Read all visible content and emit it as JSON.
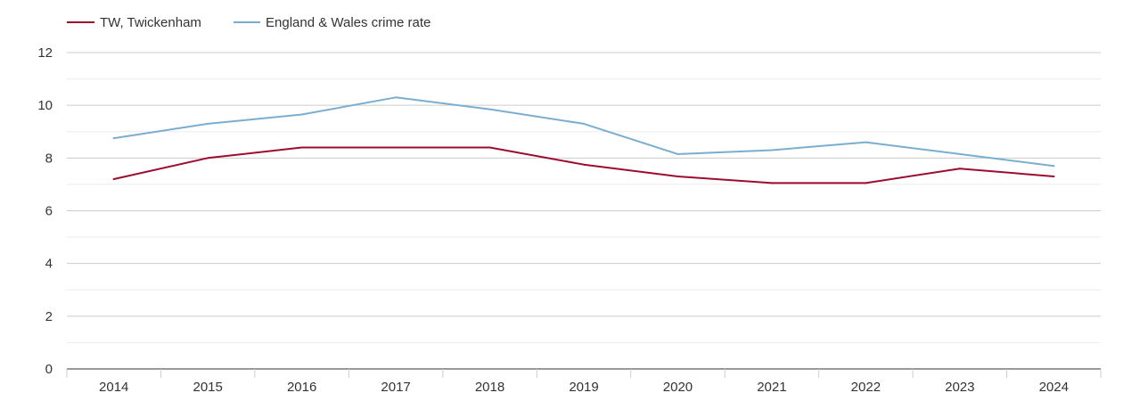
{
  "chart_data": {
    "type": "line",
    "title": "",
    "xlabel": "",
    "ylabel": "",
    "categories": [
      "2014",
      "2015",
      "2016",
      "2017",
      "2018",
      "2019",
      "2020",
      "2021",
      "2022",
      "2023",
      "2024"
    ],
    "ylim": [
      0,
      12
    ],
    "yticks": [
      0,
      2,
      4,
      6,
      8,
      10,
      12
    ],
    "grid": true,
    "legend_position": "top-left",
    "series": [
      {
        "name": "TW, Twickenham",
        "color": "#9b0d2e",
        "values": [
          7.2,
          8.0,
          8.4,
          8.4,
          8.4,
          7.75,
          7.3,
          7.05,
          7.05,
          7.6,
          7.3
        ]
      },
      {
        "name": "England & Wales crime rate",
        "color": "#7aaed0",
        "values": [
          8.75,
          9.3,
          9.65,
          10.3,
          9.85,
          9.3,
          8.15,
          8.3,
          8.6,
          8.15,
          7.7
        ]
      }
    ]
  }
}
